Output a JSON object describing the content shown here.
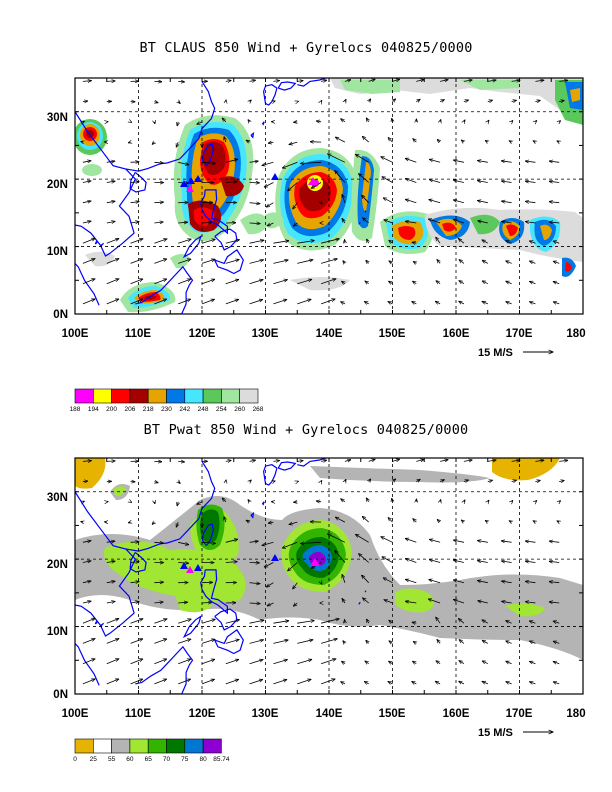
{
  "panels": [
    {
      "id": "claus",
      "title": "BT CLAUS 850 Wind + Gyrelocs 040825/0000",
      "lat_labels": [
        "0N",
        "10N",
        "20N",
        "30N"
      ],
      "lon_labels": [
        "100E",
        "110E",
        "120E",
        "130E",
        "140E",
        "150E",
        "160E",
        "170E",
        "180"
      ],
      "vector_ref_label": "15 M/S",
      "colorbar": {
        "colors": [
          "#ff00ff",
          "#ffff00",
          "#ff0000",
          "#a50000",
          "#e6a400",
          "#0078e6",
          "#46e6ff",
          "#5ac85a",
          "#a0e6a0",
          "#dcdcdc"
        ],
        "labels": [
          "188",
          "194",
          "200",
          "206",
          "218",
          "230",
          "242",
          "248",
          "254",
          "260",
          "268"
        ]
      }
    },
    {
      "id": "pwat",
      "title": "BT Pwat 850 Wind + Gyrelocs 040825/0000",
      "lat_labels": [
        "0N",
        "10N",
        "20N",
        "30N"
      ],
      "lon_labels": [
        "100E",
        "110E",
        "120E",
        "130E",
        "140E",
        "150E",
        "160E",
        "170E",
        "180"
      ],
      "vector_ref_label": "15 M/S",
      "colorbar": {
        "colors": [
          "#e6b400",
          "#ffffff",
          "#b4b4b4",
          "#a0e632",
          "#32b400",
          "#007800",
          "#0078d2",
          "#8c00d2"
        ],
        "labels": [
          "0",
          "25",
          "55",
          "60",
          "65",
          "70",
          "75",
          "80",
          "85.74"
        ]
      }
    }
  ]
}
